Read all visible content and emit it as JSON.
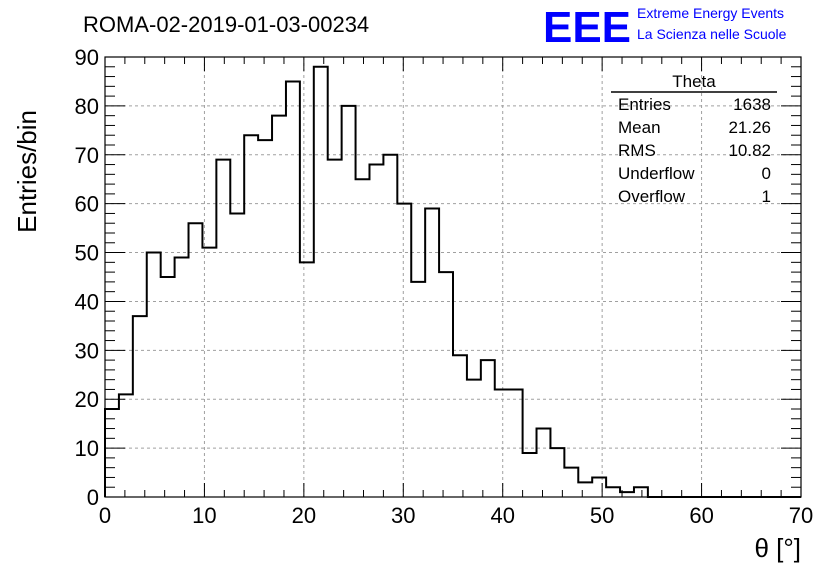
{
  "header": {
    "title": "ROMA-02-2019-01-03-00234",
    "logo_text": "EEE",
    "logo_line1": "Extreme Energy Events",
    "logo_line2": "La Scienza nelle Scuole",
    "logo_color": "#0000ff"
  },
  "stats": {
    "title": "Theta",
    "rows": [
      {
        "label": "Entries",
        "value": "1638"
      },
      {
        "label": "Mean",
        "value": "21.26"
      },
      {
        "label": "RMS",
        "value": "10.82"
      },
      {
        "label": "Underflow",
        "value": "0"
      },
      {
        "label": "Overflow",
        "value": "1"
      }
    ]
  },
  "chart_data": {
    "type": "bar",
    "histogram": "step",
    "xlabel": "θ [°]",
    "ylabel": "Entries/bin",
    "xlim": [
      0,
      70
    ],
    "ylim": [
      0,
      90
    ],
    "x_ticks": [
      0,
      10,
      20,
      30,
      40,
      50,
      60,
      70
    ],
    "y_ticks": [
      0,
      10,
      20,
      30,
      40,
      50,
      60,
      70,
      80,
      90
    ],
    "grid": true,
    "bin_width": 1.4,
    "bin_edges_start": 0,
    "values": [
      18,
      21,
      37,
      50,
      45,
      49,
      56,
      51,
      69,
      58,
      74,
      73,
      78,
      85,
      48,
      88,
      69,
      80,
      65,
      68,
      70,
      60,
      44,
      59,
      46,
      29,
      24,
      28,
      22,
      22,
      9,
      14,
      10,
      6,
      3,
      4,
      2,
      1,
      2,
      0,
      0,
      0,
      0,
      0,
      0,
      0,
      0,
      0,
      0,
      0
    ]
  }
}
